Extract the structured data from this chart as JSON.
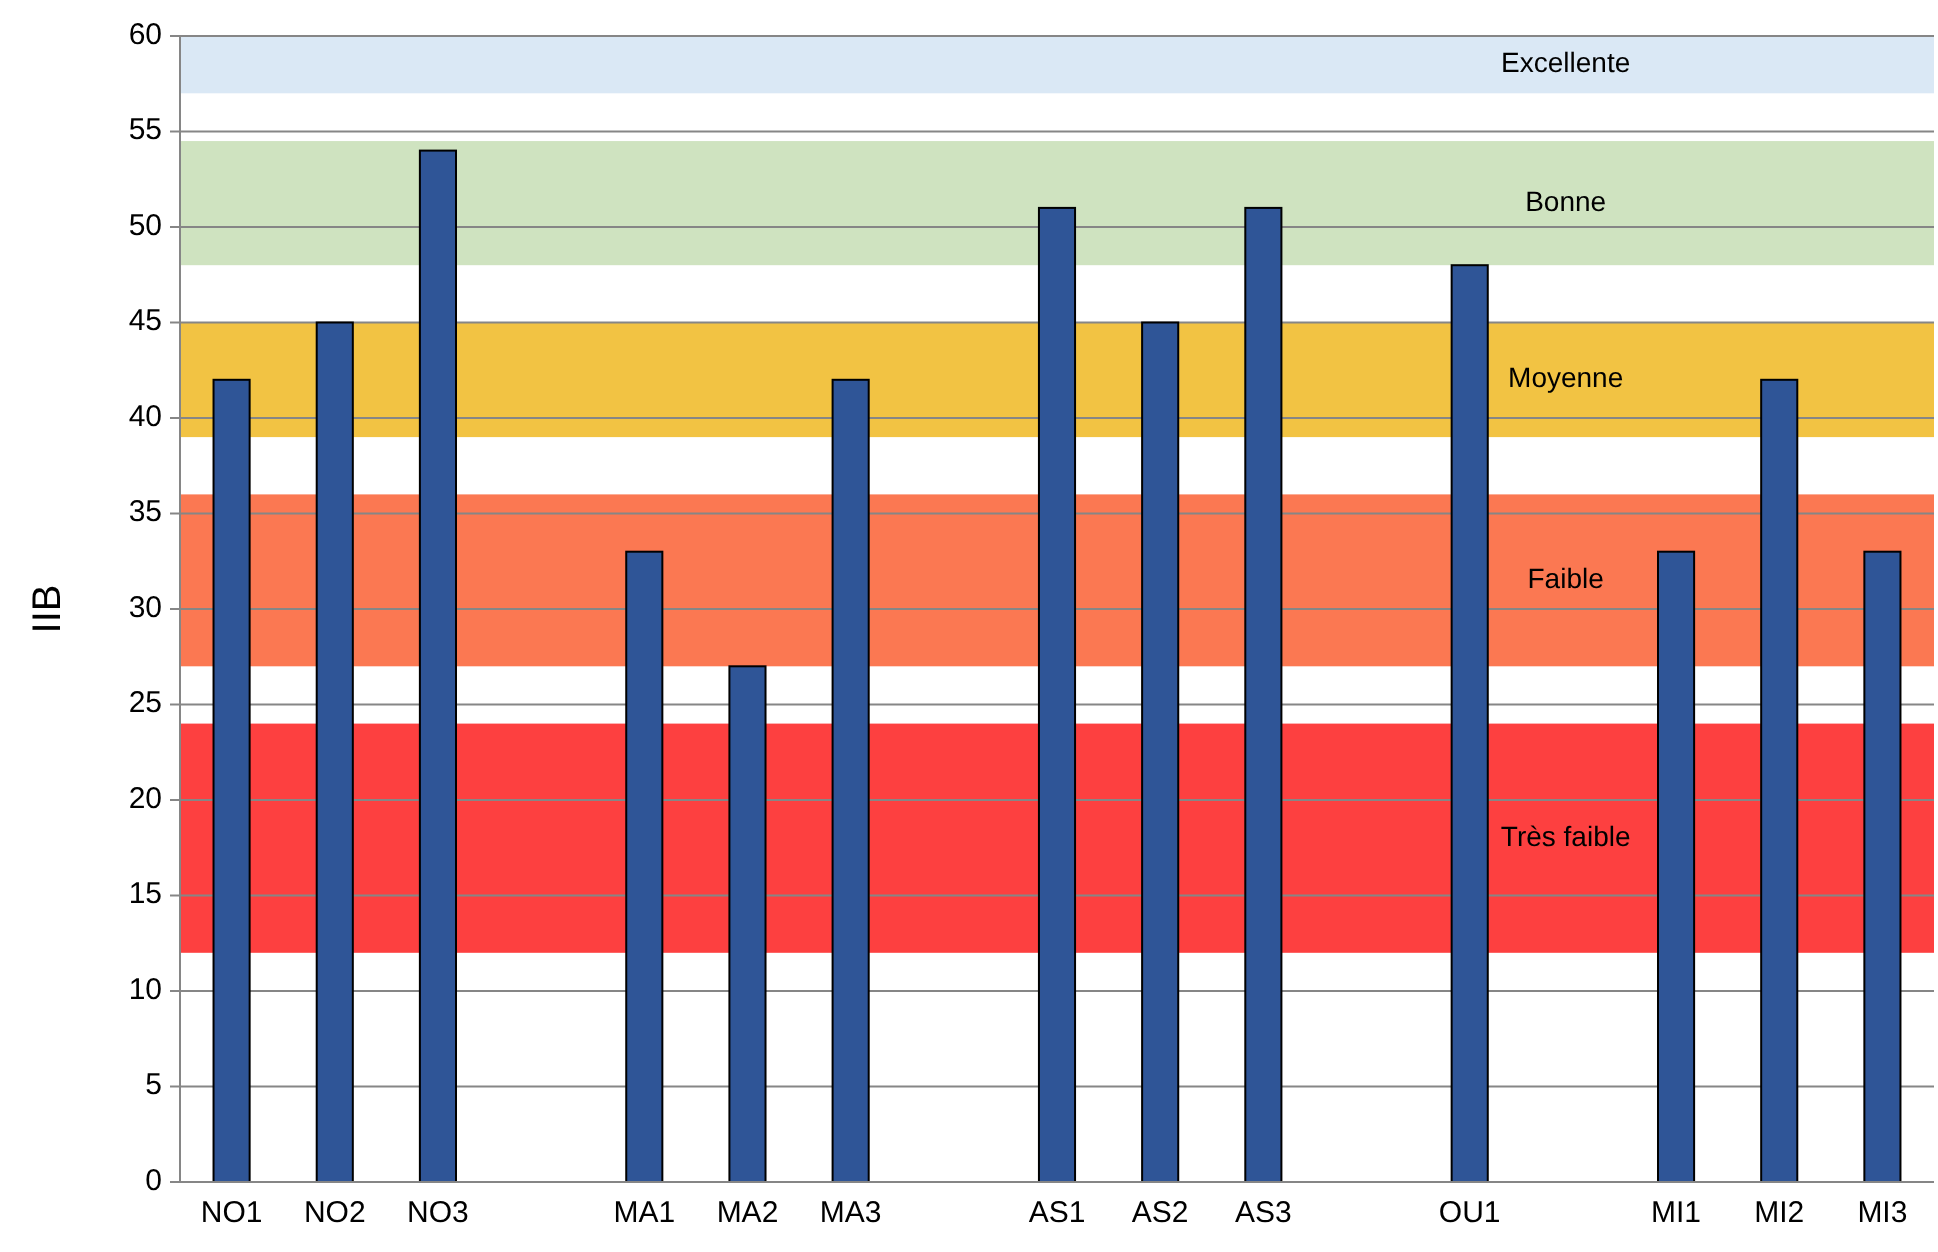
{
  "chart_data": {
    "type": "bar",
    "ylabel": "IIB",
    "categories": [
      "NO1",
      "NO2",
      "NO3",
      null,
      "MA1",
      "MA2",
      "MA3",
      null,
      "AS1",
      "AS2",
      "AS3",
      null,
      "OU1",
      null,
      "MI1",
      "MI2",
      "MI3"
    ],
    "values": [
      42,
      45,
      54,
      null,
      33,
      27,
      42,
      null,
      51,
      45,
      51,
      null,
      48,
      null,
      33,
      42,
      33
    ],
    "color": "#2f5597",
    "ylim": [
      0,
      60
    ],
    "yticks": [
      0,
      5,
      10,
      15,
      20,
      25,
      30,
      35,
      40,
      45,
      50,
      55,
      60
    ],
    "grid": "y",
    "bands": [
      {
        "axis": "y",
        "from": 57,
        "to": 60,
        "label": "Excellente",
        "color": "#dae8f5"
      },
      {
        "axis": "y",
        "from": 48,
        "to": 54.5,
        "label": "Bonne",
        "color": "#cfe3c0"
      },
      {
        "axis": "y",
        "from": 39,
        "to": 45,
        "label": "Moyenne",
        "color": "#f2c343"
      },
      {
        "axis": "y",
        "from": 27,
        "to": 36,
        "label": "Faible",
        "color": "#fb7852"
      },
      {
        "axis": "y",
        "from": 12,
        "to": 24,
        "label": "Très faible",
        "color": "#fd4040"
      }
    ]
  }
}
